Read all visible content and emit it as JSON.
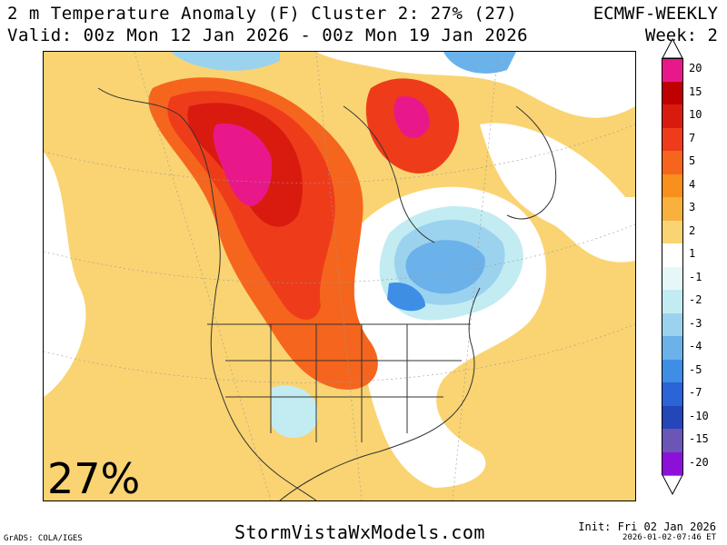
{
  "header": {
    "title": "2 m Temperature Anomaly (F) Cluster 2: 27% (27)",
    "valid": "Valid: 00z Mon 12 Jan 2026 - 00z Mon 19 Jan 2026",
    "model": "ECMWF-WEEKLY",
    "week": "Week: 2"
  },
  "map": {
    "cluster_percent_label": "27%"
  },
  "legend": {
    "levels": [
      {
        "label": "20",
        "color": "#e8188a"
      },
      {
        "label": "15",
        "color": "#c00000"
      },
      {
        "label": "10",
        "color": "#d91b0f"
      },
      {
        "label": "7",
        "color": "#ee3c1a"
      },
      {
        "label": "5",
        "color": "#f5651e"
      },
      {
        "label": "4",
        "color": "#f7901c"
      },
      {
        "label": "3",
        "color": "#f8b13c"
      },
      {
        "label": "2",
        "color": "#fad472"
      },
      {
        "label": "1",
        "color": "#ffffff"
      },
      {
        "label": "-1",
        "color": "#e6f7f7"
      },
      {
        "label": "-2",
        "color": "#c2ecf2"
      },
      {
        "label": "-3",
        "color": "#9bd3ef"
      },
      {
        "label": "-4",
        "color": "#6bb2ea"
      },
      {
        "label": "-5",
        "color": "#3e8ee6"
      },
      {
        "label": "-7",
        "color": "#2a64d6"
      },
      {
        "label": "-10",
        "color": "#2346b8"
      },
      {
        "label": "-15",
        "color": "#6b55b5"
      },
      {
        "label": "-20",
        "color": "#8c10d8"
      }
    ],
    "top_arrow_color": "#ffffff",
    "bottom_arrow_color": "#ffffff"
  },
  "footer": {
    "site": "StormVistaWxModels.com",
    "grads": "GrADS: COLA/IGES",
    "init": "Init: Fri 02 Jan 2026",
    "timestamp": "2026-01-02-07:46 ET"
  }
}
